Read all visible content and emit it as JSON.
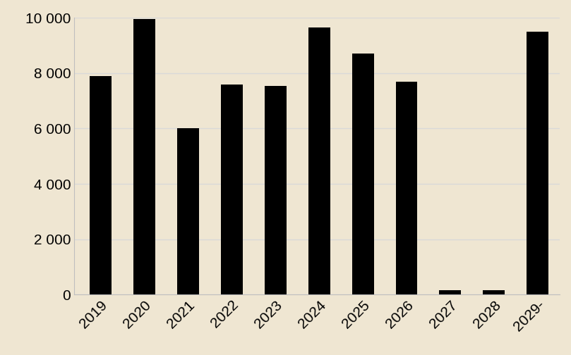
{
  "chart_data": {
    "type": "bar",
    "categories": [
      "2019",
      "2020",
      "2021",
      "2022",
      "2023",
      "2024",
      "2025",
      "2026",
      "2027",
      "2028",
      "2029-"
    ],
    "values": [
      7900,
      9950,
      6000,
      7600,
      7550,
      9650,
      8700,
      7700,
      150,
      150,
      9500
    ],
    "color": "#000000",
    "ylim": [
      0,
      10000
    ],
    "yticks": [
      0,
      {
        "value": 2000,
        "label": "2 000"
      },
      {
        "value": 4000,
        "label": "4 000"
      },
      {
        "value": 6000,
        "label": "6 000"
      },
      {
        "value": 8000,
        "label": "8 000"
      },
      {
        "value": 10000,
        "label": "10 000"
      }
    ],
    "grid": true
  }
}
